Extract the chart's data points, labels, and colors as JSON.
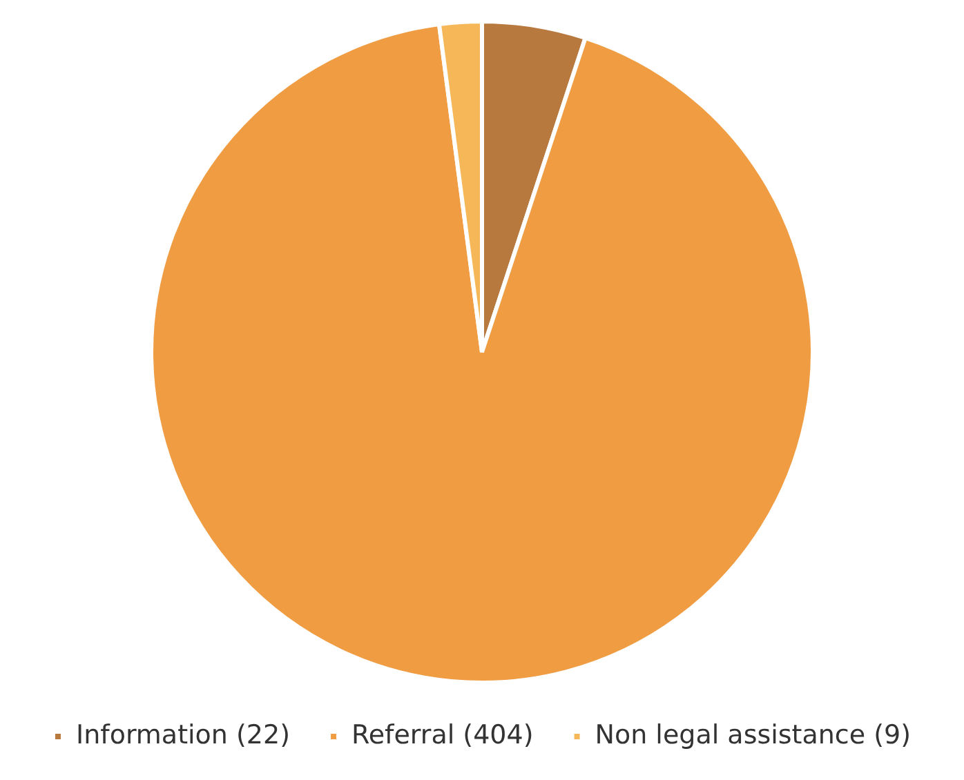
{
  "chart_data": {
    "type": "pie",
    "categories": [
      "Information (22)",
      "Referral (404)",
      "Non legal assistance (9)"
    ],
    "values": [
      22,
      404,
      9
    ],
    "colors": [
      "#b8793f",
      "#f09c42",
      "#f5b757"
    ],
    "legend": "bottom"
  }
}
